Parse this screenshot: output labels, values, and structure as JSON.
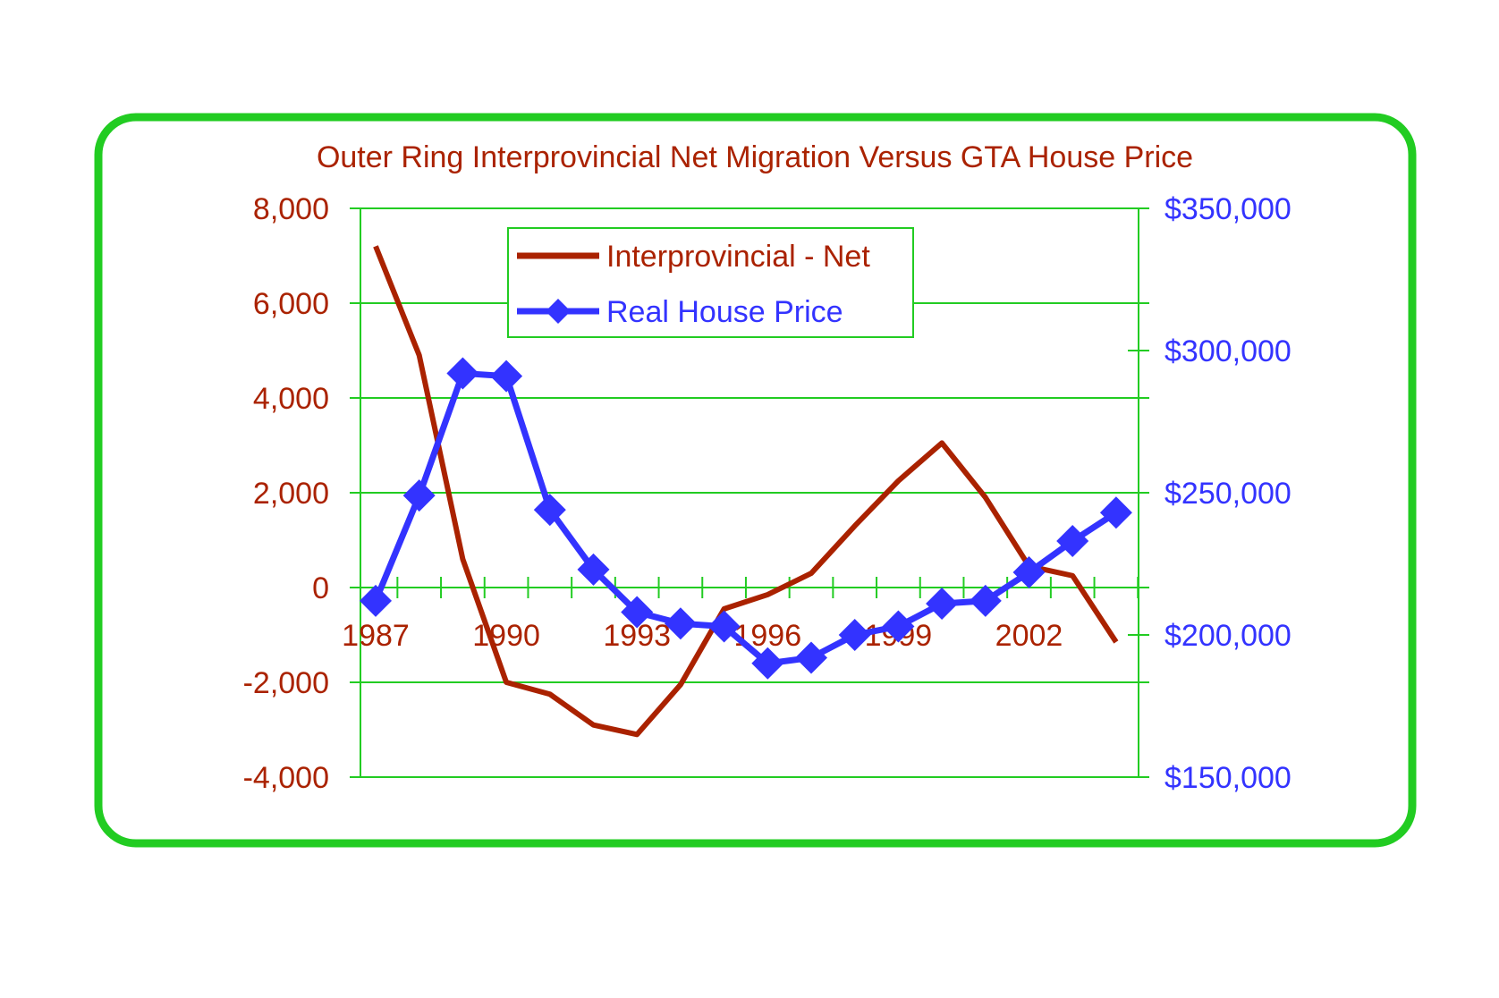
{
  "colors": {
    "background": "#ffffff",
    "frame": "#22cc22",
    "grid": "#22cc22",
    "series_net": "#aa2200",
    "series_price": "#3333ff"
  },
  "chart_data": {
    "type": "line",
    "title": "Outer Ring Interprovincial Net Migration Versus GTA House Price",
    "xlabel": "",
    "ylabel": "",
    "x": [
      1987,
      1988,
      1989,
      1990,
      1991,
      1992,
      1993,
      1994,
      1995,
      1996,
      1997,
      1998,
      1999,
      2000,
      2001,
      2002,
      2003,
      2004
    ],
    "x_tick_labels": [
      "1987",
      "1990",
      "1993",
      "1996",
      "1999",
      "2002"
    ],
    "y_left": {
      "lim": [
        -4000,
        8000
      ],
      "ticks": [
        -4000,
        -2000,
        0,
        2000,
        4000,
        6000,
        8000
      ],
      "tick_labels": [
        "-4,000",
        "-2,000",
        "0",
        "2,000",
        "4,000",
        "6,000",
        "8,000"
      ]
    },
    "y_right": {
      "lim": [
        150000,
        350000
      ],
      "ticks": [
        150000,
        200000,
        250000,
        300000,
        350000
      ],
      "tick_labels": [
        "$150,000",
        "$200,000",
        "$250,000",
        "$300,000",
        "$350,000"
      ]
    },
    "grid": true,
    "legend_position": "top-center",
    "series": [
      {
        "name": "Interprovincial - Net",
        "axis": "left",
        "marker": "none",
        "values": [
          7200,
          4900,
          600,
          -2000,
          -2250,
          -2900,
          -3100,
          -2050,
          -450,
          -150,
          300,
          1300,
          2250,
          3050,
          1900,
          450,
          250,
          -1150
        ]
      },
      {
        "name": "Real House Price",
        "axis": "right",
        "marker": "diamond",
        "values": [
          212000,
          249000,
          292000,
          291000,
          244000,
          223000,
          208000,
          204000,
          203000,
          190000,
          192000,
          200000,
          203000,
          211000,
          212000,
          222000,
          233000,
          243000
        ]
      }
    ]
  }
}
